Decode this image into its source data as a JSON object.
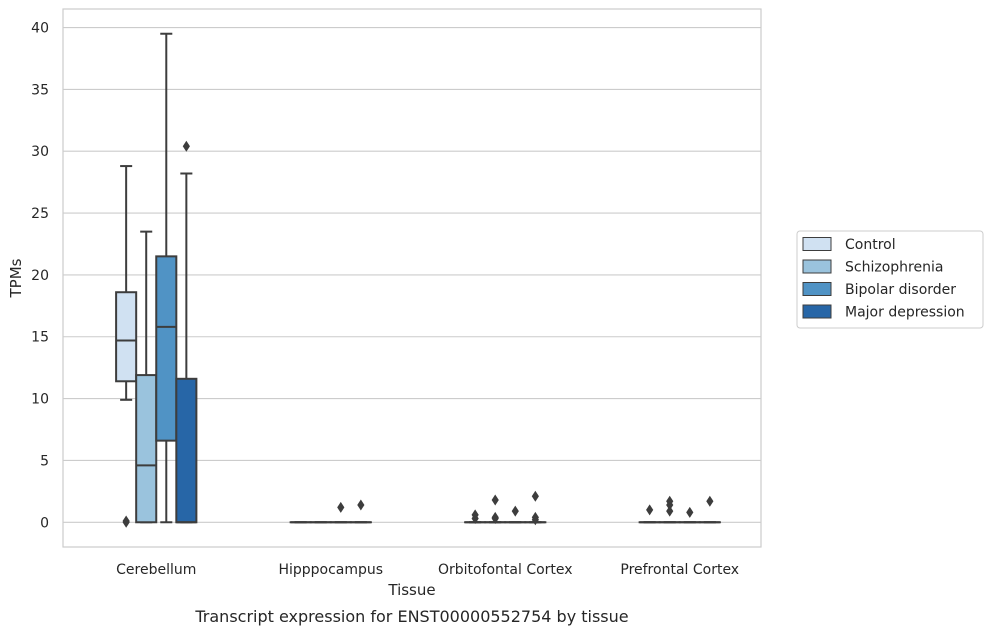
{
  "chart_data": {
    "type": "boxplot",
    "caption": "Transcript expression for ENST00000552754 by tissue",
    "xlabel": "Tissue",
    "ylabel": "TPMs",
    "ylim": [
      -2,
      41.5
    ],
    "yticks": [
      0,
      5,
      10,
      15,
      20,
      25,
      30,
      35,
      40
    ],
    "grid": true,
    "legend_position": "right",
    "categories": [
      "Cerebellum",
      "Hipppocampus",
      "Orbitofontal Cortex",
      "Prefrontal Cortex"
    ],
    "series": [
      {
        "name": "Control",
        "color": "#d0e1f2",
        "boxes": [
          {
            "whislo": 9.9,
            "q1": 11.4,
            "med": 14.7,
            "q3": 18.6,
            "whishi": 28.8,
            "fliers": [
              0.0,
              0.1
            ]
          },
          {
            "whislo": 0,
            "q1": 0,
            "med": 0,
            "q3": 0,
            "whishi": 0,
            "fliers": []
          },
          {
            "whislo": 0,
            "q1": 0,
            "med": 0,
            "q3": 0,
            "whishi": 0,
            "fliers": [
              0.6,
              0.3
            ]
          },
          {
            "whislo": 0,
            "q1": 0,
            "med": 0,
            "q3": 0,
            "whishi": 0,
            "fliers": [
              1.0
            ]
          }
        ]
      },
      {
        "name": "Schizophrenia",
        "color": "#9ac3dd",
        "boxes": [
          {
            "whislo": 0,
            "q1": 0,
            "med": 4.6,
            "q3": 11.9,
            "whishi": 23.5,
            "fliers": []
          },
          {
            "whislo": 0,
            "q1": 0,
            "med": 0,
            "q3": 0,
            "whishi": 0,
            "fliers": []
          },
          {
            "whislo": 0,
            "q1": 0,
            "med": 0,
            "q3": 0,
            "whishi": 0,
            "fliers": [
              1.8,
              0.4,
              0.3
            ]
          },
          {
            "whislo": 0,
            "q1": 0,
            "med": 0,
            "q3": 0,
            "whishi": 0,
            "fliers": [
              1.7,
              1.4,
              0.9
            ]
          }
        ]
      },
      {
        "name": "Bipolar disorder",
        "color": "#5093c5",
        "boxes": [
          {
            "whislo": 0,
            "q1": 6.6,
            "med": 15.8,
            "q3": 21.5,
            "whishi": 39.5,
            "fliers": []
          },
          {
            "whislo": 0,
            "q1": 0,
            "med": 0,
            "q3": 0,
            "whishi": 0,
            "fliers": [
              1.2
            ]
          },
          {
            "whislo": 0,
            "q1": 0,
            "med": 0,
            "q3": 0,
            "whishi": 0,
            "fliers": [
              0.9
            ]
          },
          {
            "whislo": 0,
            "q1": 0,
            "med": 0,
            "q3": 0,
            "whishi": 0,
            "fliers": [
              0.8
            ]
          }
        ]
      },
      {
        "name": "Major depression",
        "color": "#2766a7",
        "boxes": [
          {
            "whislo": 0,
            "q1": 0,
            "med": 0,
            "q3": 11.6,
            "whishi": 28.2,
            "fliers": [
              30.4
            ]
          },
          {
            "whislo": 0,
            "q1": 0,
            "med": 0,
            "q3": 0,
            "whishi": 0,
            "fliers": [
              1.4
            ]
          },
          {
            "whislo": 0,
            "q1": 0,
            "med": 0,
            "q3": 0,
            "whishi": 0,
            "fliers": [
              2.1,
              0.4,
              0.2
            ]
          },
          {
            "whislo": 0,
            "q1": 0,
            "med": 0,
            "q3": 0,
            "whishi": 0,
            "fliers": [
              1.7
            ]
          }
        ]
      }
    ]
  }
}
